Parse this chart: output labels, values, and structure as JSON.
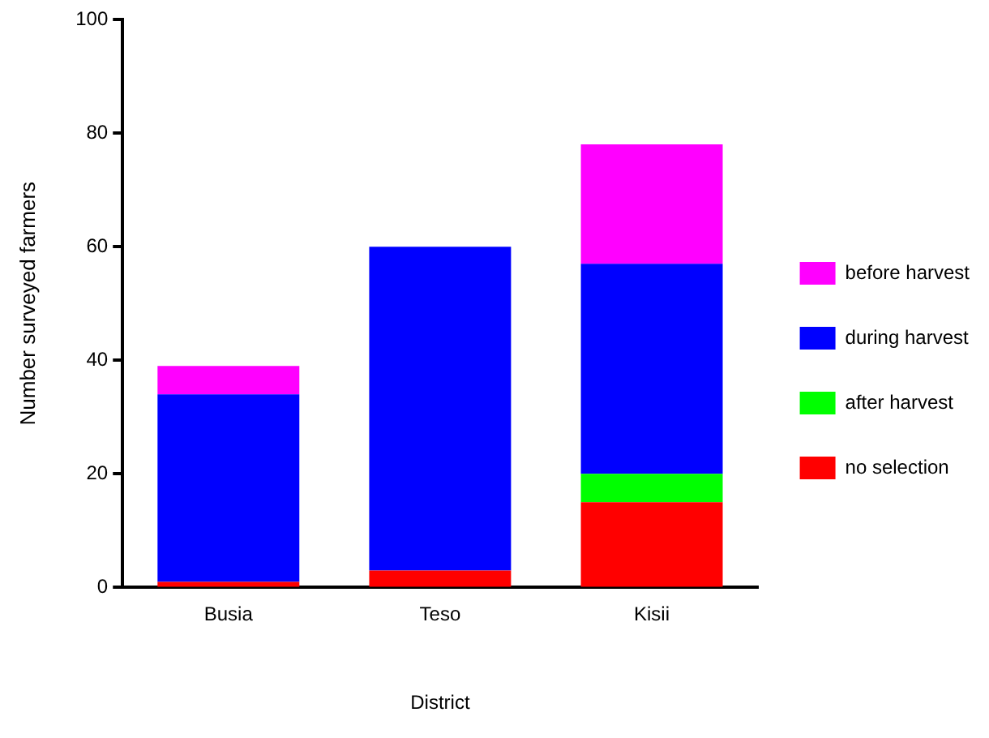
{
  "chart_data": {
    "type": "bar",
    "stacked": true,
    "xlabel": "District",
    "ylabel": "Number surveyed farmers",
    "categories": [
      "Busia",
      "Teso",
      "Kisii"
    ],
    "series": [
      {
        "name": "no selection",
        "color": "#ff0000",
        "values": [
          1,
          3,
          15
        ]
      },
      {
        "name": "after harvest",
        "color": "#00ff00",
        "values": [
          0,
          0,
          5
        ]
      },
      {
        "name": "during harvest",
        "color": "#0000ff",
        "values": [
          33,
          57,
          37
        ]
      },
      {
        "name": "before harvest",
        "color": "#ff00ff",
        "values": [
          5,
          0,
          21
        ]
      }
    ],
    "ylim": [
      0,
      100
    ],
    "yticks": [
      0,
      20,
      40,
      60,
      80,
      100
    ],
    "grid": false,
    "legend": "right"
  }
}
